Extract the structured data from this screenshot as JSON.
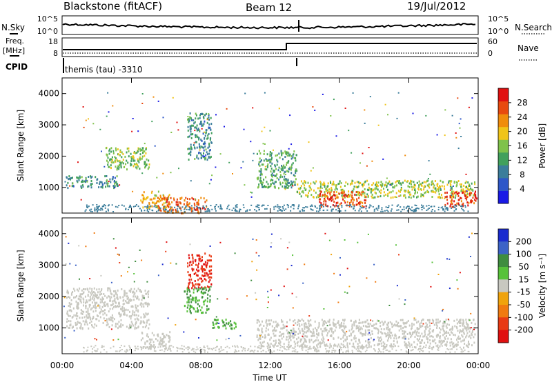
{
  "header": {
    "station": "Blackstone (fitACF)",
    "beam": "Beam 12",
    "date": "19/Jul/2012",
    "cpid": "themis (tau) -3310"
  },
  "top_panels": {
    "nsky_label": "N.Sky",
    "nsearch_label": "N.Search",
    "freq_label": "Freq.",
    "freq_unit": "[MHz]",
    "nave_label": "Nave",
    "cpid_label": "CPID",
    "left_ticks_top": [
      "10^5",
      "10^0"
    ],
    "right_ticks_top": [
      "10^5",
      "10^0"
    ],
    "left_ticks_freq": [
      "18",
      "8"
    ],
    "right_ticks_nave": [
      "60",
      "0"
    ]
  },
  "colors": {
    "power": [
      "#1a1ae6",
      "#2e57c8",
      "#3b7d9b",
      "#41a05c",
      "#7fc24a",
      "#f0c419",
      "#f08c0c",
      "#e84a0f",
      "#e01010"
    ],
    "velocity": [
      "#1b2ccf",
      "#3c63c7",
      "#3f8d3f",
      "#57c23a",
      "#c8c8c0",
      "#f0a30c",
      "#f07a10",
      "#e83a14",
      "#e01010"
    ]
  },
  "chart_data": [
    {
      "type": "heatmap",
      "title": "Power",
      "xlabel": "Time UT",
      "ylabel": "Slant Range [km]",
      "x_ticks": [
        "00:00",
        "04:00",
        "08:00",
        "12:00",
        "16:00",
        "20:00",
        "00:00"
      ],
      "xlim": [
        0,
        24
      ],
      "ylim": [
        180,
        4500
      ],
      "y_ticks": [
        1000,
        2000,
        3000,
        4000
      ],
      "colorbar": {
        "label": "Power [dB]",
        "ticks": [
          4,
          8,
          12,
          16,
          20,
          24,
          28
        ],
        "range": [
          0,
          30
        ]
      },
      "features": [
        {
          "t_start": 0.2,
          "t_end": 3.2,
          "range_start": 1000,
          "range_end": 1400,
          "value": 10
        },
        {
          "t_start": 2.5,
          "t_end": 5.0,
          "range_start": 1600,
          "range_end": 2300,
          "value": 14
        },
        {
          "t_start": 4.5,
          "t_end": 6.2,
          "range_start": 350,
          "range_end": 900,
          "value": 20
        },
        {
          "t_start": 5.5,
          "t_end": 8.3,
          "range_start": 200,
          "range_end": 700,
          "value": 24
        },
        {
          "t_start": 7.2,
          "t_end": 8.6,
          "range_start": 1900,
          "range_end": 3400,
          "value": 10
        },
        {
          "t_start": 11.2,
          "t_end": 13.5,
          "range_start": 1000,
          "range_end": 2200,
          "value": 12
        },
        {
          "t_start": 13.5,
          "t_end": 23.8,
          "range_start": 700,
          "range_end": 1250,
          "value": 16
        },
        {
          "t_start": 14.8,
          "t_end": 17.5,
          "range_start": 400,
          "range_end": 900,
          "value": 26
        },
        {
          "t_start": 22.0,
          "t_end": 23.9,
          "range_start": 400,
          "range_end": 900,
          "value": 26
        }
      ]
    },
    {
      "type": "heatmap",
      "title": "Velocity",
      "xlabel": "Time UT",
      "ylabel": "Slant Range [km]",
      "x_ticks": [
        "00:00",
        "04:00",
        "08:00",
        "12:00",
        "16:00",
        "20:00",
        "00:00"
      ],
      "xlim": [
        0,
        24
      ],
      "ylim": [
        180,
        4500
      ],
      "y_ticks": [
        1000,
        2000,
        3000,
        4000
      ],
      "colorbar": {
        "label": "Velocity [m s⁻¹]",
        "ticks": [
          200,
          100,
          50,
          15,
          -15,
          -50,
          -100,
          -200
        ]
      },
      "features": [
        {
          "t_start": 0.2,
          "t_end": 5.0,
          "range_start": 1000,
          "range_end": 2300,
          "value": 0
        },
        {
          "t_start": 4.5,
          "t_end": 6.2,
          "range_start": 350,
          "range_end": 900,
          "value": 0
        },
        {
          "t_start": 7.2,
          "t_end": 8.6,
          "range_start": 2300,
          "range_end": 3400,
          "value": -200
        },
        {
          "t_start": 7.0,
          "t_end": 8.5,
          "range_start": 1500,
          "range_end": 2300,
          "value": 50
        },
        {
          "t_start": 8.6,
          "t_end": 10.0,
          "range_start": 1000,
          "range_end": 1300,
          "value": 50
        },
        {
          "t_start": 11.2,
          "t_end": 23.8,
          "range_start": 400,
          "range_end": 1300,
          "value": 0
        }
      ]
    }
  ]
}
